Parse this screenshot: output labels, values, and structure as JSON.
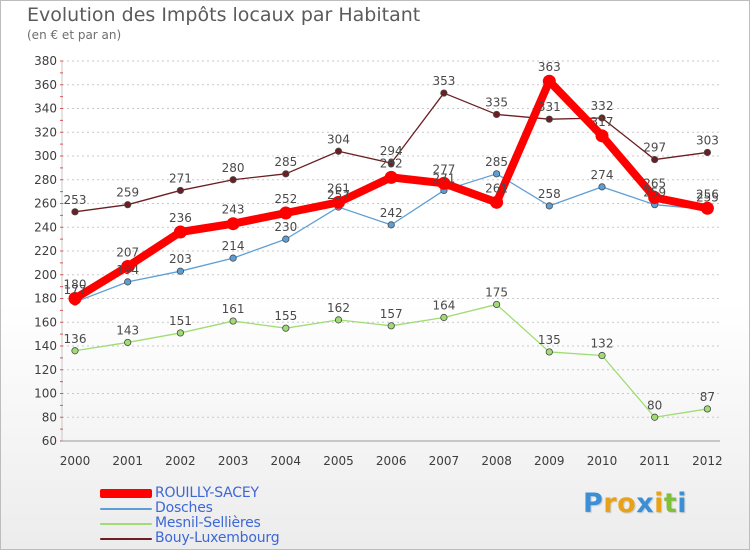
{
  "chart_data": {
    "type": "line",
    "title": "Evolution des Impôts locaux par Habitant",
    "subtitle": "(en € et par an)",
    "xlabel": "",
    "ylabel": "",
    "categories": [
      "2000",
      "2001",
      "2002",
      "2003",
      "2004",
      "2005",
      "2006",
      "2007",
      "2008",
      "2009",
      "2010",
      "2011",
      "2012"
    ],
    "ylim": [
      60,
      380
    ],
    "yticks": [
      60,
      80,
      100,
      120,
      140,
      160,
      180,
      200,
      220,
      240,
      260,
      280,
      300,
      320,
      340,
      360,
      380
    ],
    "grid": true,
    "legend_position": "bottom-left",
    "series": [
      {
        "name": "Bouy-Luxembourg",
        "color": "#6b1f22",
        "values": [
          253,
          259,
          271,
          280,
          285,
          304,
          294,
          353,
          335,
          331,
          332,
          297,
          303
        ]
      },
      {
        "name": "Mesnil-Sellières",
        "color": "#9fdc72",
        "values": [
          136,
          143,
          151,
          161,
          155,
          162,
          157,
          164,
          175,
          135,
          132,
          80,
          87
        ]
      },
      {
        "name": "Dosches",
        "color": "#5d9fd5",
        "values": [
          177,
          194,
          203,
          214,
          230,
          257,
          242,
          271,
          285,
          258,
          274,
          259,
          255
        ]
      },
      {
        "name": "ROUILLY-SACEY",
        "color": "#ff0000",
        "values": [
          180,
          207,
          236,
          243,
          252,
          261,
          282,
          277,
          261,
          363,
          317,
          265,
          256
        ]
      }
    ]
  },
  "legend_order": [
    "ROUILLY-SACEY",
    "Dosches",
    "Mesnil-Sellières",
    "Bouy-Luxembourg"
  ],
  "logo": {
    "letters": [
      "P",
      "r",
      "o",
      "x",
      "i",
      "t",
      "i"
    ],
    "colors": [
      "#3a8fd6",
      "#e8a21a",
      "#e8a21a",
      "#3a8fd6",
      "#e8a21a",
      "#7fbf3a",
      "#3a8fd6"
    ]
  }
}
